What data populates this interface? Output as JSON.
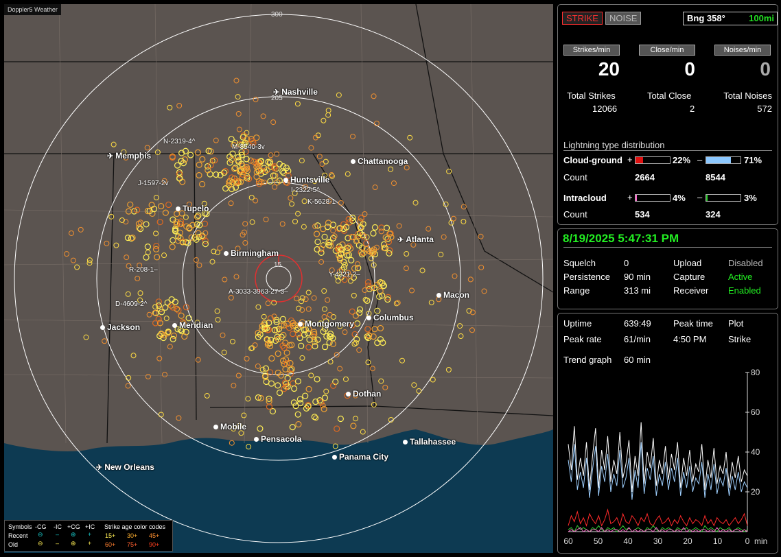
{
  "app": {
    "watermark": "Doppler5 Weather"
  },
  "map": {
    "ring_labels": {
      "r300": "300",
      "r205": "205",
      "r15": "15"
    },
    "cities": [
      {
        "id": "nashville",
        "label": "Nashville",
        "icon": "airport"
      },
      {
        "id": "memphis",
        "label": "Memphis",
        "icon": "airport"
      },
      {
        "id": "chattanooga",
        "label": "Chattanooga",
        "icon": "dot"
      },
      {
        "id": "huntsville",
        "label": "Huntsville",
        "icon": "dot"
      },
      {
        "id": "tupelo",
        "label": "Tupelo",
        "icon": "dot"
      },
      {
        "id": "atlanta",
        "label": "Atlanta",
        "icon": "airport"
      },
      {
        "id": "birmingham",
        "label": "Birmingham",
        "icon": "dot"
      },
      {
        "id": "macon",
        "label": "Macon",
        "icon": "dot"
      },
      {
        "id": "columbus",
        "label": "Columbus",
        "icon": "dot"
      },
      {
        "id": "montgomery",
        "label": "Montgomery",
        "icon": "dot"
      },
      {
        "id": "jackson",
        "label": "Jackson",
        "icon": "dot"
      },
      {
        "id": "meridian",
        "label": "Meridian",
        "icon": "dot"
      },
      {
        "id": "dothan",
        "label": "Dothan",
        "icon": "dot"
      },
      {
        "id": "mobile",
        "label": "Mobile",
        "icon": "dot"
      },
      {
        "id": "pensacola",
        "label": "Pensacola",
        "icon": "dot"
      },
      {
        "id": "tallahassee",
        "label": "Tallahassee",
        "icon": "dot"
      },
      {
        "id": "panama_city",
        "label": "Panama City",
        "icon": "dot"
      },
      {
        "id": "new_orleans",
        "label": "New Orleans",
        "icon": "airport"
      }
    ],
    "storm_labels": [
      "N-2319-4^",
      "M-8540-3v",
      "J-1597-2v",
      "I-2322-5^",
      "K-5628-1",
      "R-208-1–",
      "D-4609-2^",
      "Y-4321-2–",
      "A-3033-3963-27-3–"
    ],
    "colors": {
      "land": "#5b5450",
      "water": "#0d3a52",
      "ring": "#ffffff",
      "center_ring": "#e03030",
      "strike_recent": "#ffee55",
      "strike_old": "#e08020"
    }
  },
  "legend": {
    "symbols_label": "Symbols",
    "cols": [
      "-CG",
      "-IC",
      "+CG",
      "+IC"
    ],
    "age_title": "Strike age color codes",
    "recent_label": "Recent",
    "old_label": "Old",
    "recent_ages": [
      "15+",
      "30+",
      "45+"
    ],
    "old_ages": [
      "60+",
      "75+",
      "90+"
    ]
  },
  "status": {
    "strike_btn": "STRIKE",
    "noise_btn": "NOISE",
    "bearing": "Bng 358°",
    "range": "100mi",
    "headers": {
      "strikes_min": "Strikes/min",
      "close_min": "Close/min",
      "noises_min": "Noises/min"
    },
    "strikes_min": "20",
    "close_min": "0",
    "noises_min": "0",
    "totals_labels": {
      "strikes": "Total Strikes",
      "close": "Total Close",
      "noises": "Total Noises"
    },
    "total_strikes": "12066",
    "total_close": "2",
    "total_noises": "572"
  },
  "distribution": {
    "title": "Lightning type distribution",
    "cg_label": "Cloud-ground",
    "ic_label": "Intracloud",
    "count_label": "Count",
    "plus": "+",
    "minus": "–",
    "cg_pos_pct": "22%",
    "cg_neg_pct": "71%",
    "cg_pos_count": "2664",
    "cg_neg_count": "8544",
    "ic_pos_pct": "4%",
    "ic_neg_pct": "3%",
    "ic_pos_count": "534",
    "ic_neg_count": "324",
    "fills": {
      "cg_pos": 0.22,
      "cg_neg": 0.71,
      "ic_pos": 0.04,
      "ic_neg": 0.03
    }
  },
  "receiver": {
    "datetime": "8/19/2025 5:47:31 PM",
    "rows": [
      {
        "k1": "Squelch",
        "v1": "0",
        "k2": "Upload",
        "v2": "Disabled"
      },
      {
        "k1": "Persistence",
        "v1": "90 min",
        "k2": "Capture",
        "v2": "Active"
      },
      {
        "k1": "Range",
        "v1": "313 mi",
        "k2": "Receiver",
        "v2": "Enabled"
      }
    ]
  },
  "stats": {
    "uptime_label": "Uptime",
    "uptime": "639:49",
    "peak_time_label": "Peak time",
    "plot_label": "Plot",
    "peak_rate_label": "Peak rate",
    "peak_rate": "61/min",
    "peak_time": "4:50 PM",
    "plot": "Strike",
    "trend_label": "Trend graph",
    "trend": "60 min"
  },
  "chart_data": {
    "type": "line",
    "xlabel": "min",
    "x_ticks": [
      "60",
      "50",
      "40",
      "30",
      "20",
      "10",
      "0"
    ],
    "y_ticks": [
      "20",
      "40",
      "60",
      "80"
    ],
    "ylim": [
      0,
      80
    ],
    "xlim": [
      60,
      0
    ],
    "series": [
      {
        "color": "#ffffff",
        "values": [
          44,
          31,
          53,
          26,
          37,
          28,
          45,
          21,
          38,
          52,
          22,
          41,
          31,
          48,
          25,
          36,
          29,
          50,
          27,
          34,
          46,
          20,
          38,
          28,
          55,
          24,
          40,
          32,
          47,
          23,
          36,
          29,
          43,
          26,
          39,
          31,
          45,
          22,
          37,
          28,
          41,
          25,
          34,
          30,
          44,
          21,
          36,
          27,
          42,
          24,
          33,
          29,
          40,
          22,
          35,
          27,
          38,
          25,
          31,
          28
        ]
      },
      {
        "color": "#9fd0ff",
        "values": [
          36,
          25,
          44,
          21,
          30,
          22,
          37,
          17,
          31,
          43,
          18,
          33,
          25,
          39,
          20,
          29,
          23,
          41,
          22,
          27,
          37,
          16,
          31,
          22,
          45,
          19,
          32,
          26,
          38,
          18,
          29,
          23,
          35,
          21,
          32,
          25,
          37,
          18,
          30,
          22,
          33,
          20,
          27,
          24,
          35,
          17,
          29,
          21,
          34,
          19,
          27,
          23,
          32,
          18,
          28,
          21,
          30,
          20,
          25,
          22
        ]
      },
      {
        "color": "#ff2a2a",
        "values": [
          3,
          8,
          5,
          10,
          4,
          7,
          3,
          9,
          6,
          4,
          8,
          3,
          6,
          11,
          4,
          5,
          7,
          3,
          9,
          5,
          4,
          8,
          6,
          3,
          7,
          5,
          9,
          4,
          3,
          6,
          8,
          4,
          5,
          7,
          3,
          6,
          4,
          8,
          5,
          3,
          7,
          4,
          6,
          5,
          3,
          8,
          4,
          6,
          3,
          7,
          5,
          4,
          6,
          3,
          5,
          7,
          4,
          6,
          9,
          3
        ]
      },
      {
        "color": "#33cc33",
        "values": [
          1,
          2,
          0,
          3,
          1,
          2,
          1,
          0,
          2,
          1,
          3,
          1,
          0,
          2,
          1,
          2,
          0,
          1,
          3,
          1,
          2,
          0,
          1,
          2,
          1,
          0,
          2,
          1,
          3,
          1,
          0,
          2,
          1,
          2,
          1,
          0,
          2,
          1,
          1,
          2,
          0,
          1,
          2,
          1,
          0,
          3,
          1,
          2,
          1,
          0,
          2,
          1,
          1,
          2,
          0,
          1,
          2,
          1,
          0,
          1
        ]
      },
      {
        "color": "#ff66cc",
        "values": [
          0,
          1,
          0,
          1,
          2,
          0,
          1,
          0,
          1,
          1,
          0,
          2,
          0,
          1,
          0,
          1,
          1,
          0,
          1,
          0,
          2,
          0,
          1,
          0,
          1,
          0,
          1,
          1,
          0,
          2,
          0,
          1,
          0,
          1,
          1,
          0,
          1,
          0,
          2,
          0,
          1,
          0,
          1,
          0,
          1,
          1,
          0,
          1,
          0,
          2,
          0,
          1,
          0,
          1,
          0,
          1,
          1,
          0,
          1,
          0
        ]
      }
    ]
  }
}
